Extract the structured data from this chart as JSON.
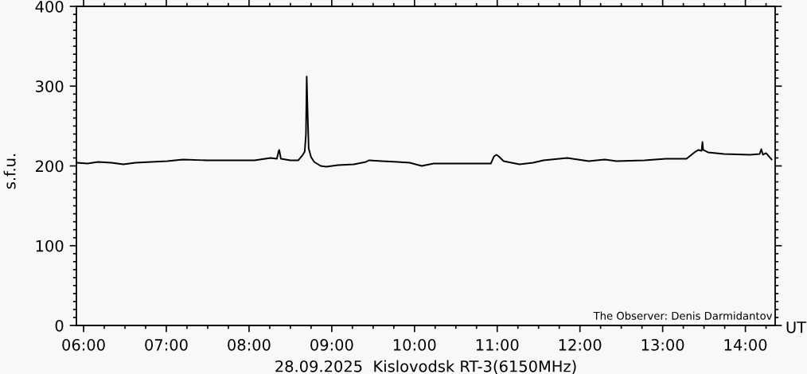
{
  "chart_data": {
    "type": "line",
    "title": "28.09.2025  Kislovodsk RT-3(6150MHz)",
    "xlabel": "UT",
    "ylabel": "s.f.u.",
    "annotations": [
      "The Observer: Denis Darmidantov"
    ],
    "line_style": "solid",
    "x": [
      5.923,
      6.048,
      6.173,
      6.337,
      6.481,
      6.625,
      6.817,
      7.01,
      7.202,
      7.49,
      7.779,
      8.067,
      8.26,
      8.337,
      8.356,
      8.365,
      8.385,
      8.5,
      8.596,
      8.644,
      8.673,
      8.688,
      8.697,
      8.707,
      8.721,
      8.75,
      8.788,
      8.865,
      8.933,
      9.077,
      9.269,
      9.413,
      9.452,
      9.606,
      9.798,
      9.942,
      10.087,
      10.231,
      10.471,
      10.76,
      10.923,
      10.962,
      10.99,
      11.019,
      11.077,
      11.269,
      11.433,
      11.558,
      11.846,
      12.106,
      12.298,
      12.442,
      12.779,
      13.038,
      13.288,
      13.385,
      13.433,
      13.471,
      13.481,
      13.49,
      13.548,
      13.74,
      14.058,
      14.173,
      14.192,
      14.212,
      14.25,
      14.317
    ],
    "series": [
      {
        "color": "#000000",
        "values": [
          204,
          203,
          205,
          204,
          202,
          204,
          205,
          206,
          208,
          207,
          207,
          207,
          210,
          209,
          218,
          220,
          209,
          207,
          207,
          213,
          218,
          240,
          312,
          271,
          222,
          211,
          205,
          200,
          199,
          201,
          202,
          205,
          207,
          206,
          205,
          204,
          200,
          203,
          203,
          203,
          203,
          212,
          214,
          212,
          206,
          202,
          204,
          207,
          210,
          206,
          208,
          206,
          207,
          209,
          209,
          217,
          220,
          219,
          230,
          220,
          217,
          215,
          214,
          215,
          221,
          214,
          216,
          208
        ]
      }
    ],
    "xlim": [
      5.913,
      14.36
    ],
    "ylim": [
      0,
      400
    ],
    "xticks": [
      {
        "value": 6,
        "label": "06:00"
      },
      {
        "value": 6.25,
        "label": null
      },
      {
        "value": 6.5,
        "label": null
      },
      {
        "value": 6.75,
        "label": null
      },
      {
        "value": 7,
        "label": "07:00"
      },
      {
        "value": 7.25,
        "label": null
      },
      {
        "value": 7.5,
        "label": null
      },
      {
        "value": 7.75,
        "label": null
      },
      {
        "value": 8,
        "label": "08:00"
      },
      {
        "value": 8.25,
        "label": null
      },
      {
        "value": 8.5,
        "label": null
      },
      {
        "value": 8.75,
        "label": null
      },
      {
        "value": 9,
        "label": "09:00"
      },
      {
        "value": 9.25,
        "label": null
      },
      {
        "value": 9.5,
        "label": null
      },
      {
        "value": 9.75,
        "label": null
      },
      {
        "value": 10,
        "label": "10:00"
      },
      {
        "value": 10.25,
        "label": null
      },
      {
        "value": 10.5,
        "label": null
      },
      {
        "value": 10.75,
        "label": null
      },
      {
        "value": 11,
        "label": "11:00"
      },
      {
        "value": 11.25,
        "label": null
      },
      {
        "value": 11.5,
        "label": null
      },
      {
        "value": 11.75,
        "label": null
      },
      {
        "value": 12,
        "label": "12:00"
      },
      {
        "value": 12.25,
        "label": null
      },
      {
        "value": 12.5,
        "label": null
      },
      {
        "value": 12.75,
        "label": null
      },
      {
        "value": 13,
        "label": "13:00"
      },
      {
        "value": 13.25,
        "label": null
      },
      {
        "value": 13.5,
        "label": null
      },
      {
        "value": 13.75,
        "label": null
      },
      {
        "value": 14,
        "label": "14:00"
      },
      {
        "value": 14.25,
        "label": null
      }
    ],
    "yticks": [
      0,
      {
        "value": 10,
        "label": null
      },
      {
        "value": 20,
        "label": null
      },
      {
        "value": 30,
        "label": null
      },
      {
        "value": 40,
        "label": null
      },
      {
        "value": 50,
        "label": null
      },
      {
        "value": 60,
        "label": null
      },
      {
        "value": 70,
        "label": null
      },
      {
        "value": 80,
        "label": null
      },
      {
        "value": 90,
        "label": null
      },
      100,
      {
        "value": 110,
        "label": null
      },
      {
        "value": 120,
        "label": null
      },
      {
        "value": 130,
        "label": null
      },
      {
        "value": 140,
        "label": null
      },
      {
        "value": 150,
        "label": null
      },
      {
        "value": 160,
        "label": null
      },
      {
        "value": 170,
        "label": null
      },
      {
        "value": 180,
        "label": null
      },
      {
        "value": 190,
        "label": null
      },
      200,
      {
        "value": 210,
        "label": null
      },
      {
        "value": 220,
        "label": null
      },
      {
        "value": 230,
        "label": null
      },
      {
        "value": 240,
        "label": null
      },
      {
        "value": 250,
        "label": null
      },
      {
        "value": 260,
        "label": null
      },
      {
        "value": 270,
        "label": null
      },
      {
        "value": 280,
        "label": null
      },
      {
        "value": 290,
        "label": null
      },
      300,
      {
        "value": 310,
        "label": null
      },
      {
        "value": 320,
        "label": null
      },
      {
        "value": 330,
        "label": null
      },
      {
        "value": 340,
        "label": null
      },
      {
        "value": 350,
        "label": null
      },
      {
        "value": 360,
        "label": null
      },
      {
        "value": 370,
        "label": null
      },
      {
        "value": 380,
        "label": null
      },
      {
        "value": 390,
        "label": null
      },
      400
    ]
  }
}
